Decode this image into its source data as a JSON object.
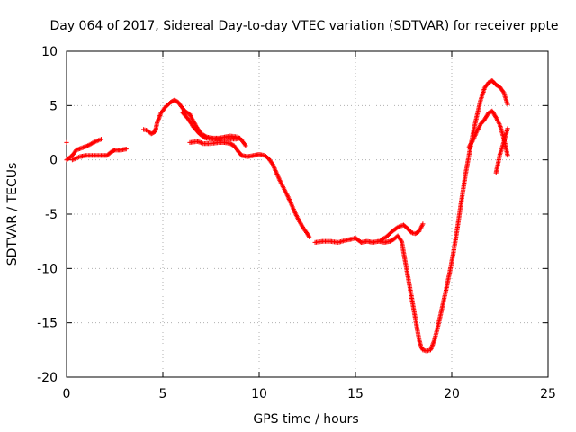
{
  "chart_data": {
    "type": "scatter",
    "title": "Day 064 of 2017, Sidereal Day-to-day VTEC variation (SDTVAR) for receiver ppte",
    "xlabel": "GPS time / hours",
    "ylabel": "SDTVAR / TECUs",
    "xlim": [
      0,
      25
    ],
    "ylim": [
      -20,
      10
    ],
    "x_ticks": [
      0,
      5,
      10,
      15,
      20,
      25
    ],
    "y_ticks": [
      -20,
      -15,
      -10,
      -5,
      0,
      5,
      10
    ],
    "x_tick_labels": [
      "0",
      "5",
      "10",
      "15",
      "20",
      "25"
    ],
    "y_tick_labels": [
      "-20",
      "-15",
      "-10",
      "-5",
      "0",
      "5",
      "10"
    ],
    "grid": true,
    "marker": "+",
    "color": "#ff0000",
    "segments": [
      [
        [
          0.0,
          1.6
        ]
      ],
      [
        [
          0.0,
          0.0
        ],
        [
          0.3,
          0.4
        ],
        [
          0.5,
          0.9
        ],
        [
          0.8,
          1.1
        ],
        [
          1.1,
          1.3
        ],
        [
          1.4,
          1.6
        ],
        [
          1.8,
          1.9
        ]
      ],
      [
        [
          0.3,
          0.0
        ],
        [
          0.7,
          0.3
        ],
        [
          1.0,
          0.4
        ],
        [
          1.4,
          0.4
        ],
        [
          1.8,
          0.4
        ],
        [
          2.1,
          0.4
        ],
        [
          2.3,
          0.7
        ],
        [
          2.5,
          0.9
        ],
        [
          2.8,
          0.9
        ],
        [
          3.1,
          1.0
        ]
      ],
      [
        [
          4.0,
          2.8
        ],
        [
          4.2,
          2.7
        ],
        [
          4.4,
          2.4
        ],
        [
          4.6,
          2.6
        ],
        [
          4.7,
          3.4
        ],
        [
          4.9,
          4.3
        ],
        [
          5.1,
          4.8
        ],
        [
          5.4,
          5.3
        ],
        [
          5.6,
          5.5
        ],
        [
          5.8,
          5.3
        ],
        [
          6.0,
          4.8
        ],
        [
          6.2,
          4.4
        ],
        [
          6.4,
          4.2
        ],
        [
          6.6,
          3.5
        ],
        [
          6.8,
          2.9
        ],
        [
          7.0,
          2.4
        ],
        [
          7.3,
          2.1
        ],
        [
          7.6,
          2.0
        ],
        [
          7.9,
          2.0
        ],
        [
          8.2,
          2.1
        ],
        [
          8.5,
          2.2
        ],
        [
          8.9,
          2.1
        ],
        [
          9.1,
          1.8
        ],
        [
          9.3,
          1.3
        ]
      ],
      [
        [
          6.0,
          4.4
        ],
        [
          6.3,
          3.8
        ],
        [
          6.6,
          3.0
        ],
        [
          6.9,
          2.4
        ],
        [
          7.2,
          2.0
        ],
        [
          7.6,
          1.9
        ],
        [
          8.0,
          1.9
        ],
        [
          8.4,
          1.9
        ],
        [
          8.8,
          1.9
        ],
        [
          9.0,
          2.0
        ]
      ],
      [
        [
          6.4,
          1.6
        ],
        [
          6.8,
          1.7
        ],
        [
          7.1,
          1.5
        ],
        [
          7.5,
          1.5
        ],
        [
          7.9,
          1.6
        ],
        [
          8.2,
          1.6
        ],
        [
          8.5,
          1.5
        ],
        [
          8.7,
          1.3
        ],
        [
          8.9,
          0.8
        ],
        [
          9.1,
          0.4
        ],
        [
          9.4,
          0.3
        ],
        [
          9.7,
          0.4
        ],
        [
          10.0,
          0.5
        ],
        [
          10.3,
          0.4
        ],
        [
          10.5,
          0.1
        ],
        [
          10.7,
          -0.4
        ],
        [
          10.9,
          -1.2
        ],
        [
          11.1,
          -2.0
        ],
        [
          11.3,
          -2.7
        ],
        [
          11.5,
          -3.4
        ],
        [
          11.7,
          -4.2
        ],
        [
          11.9,
          -5.0
        ],
        [
          12.1,
          -5.7
        ],
        [
          12.3,
          -6.3
        ],
        [
          12.5,
          -6.8
        ],
        [
          12.6,
          -7.1
        ]
      ],
      [
        [
          12.9,
          -7.6
        ],
        [
          13.3,
          -7.5
        ],
        [
          13.7,
          -7.5
        ],
        [
          14.1,
          -7.6
        ],
        [
          14.5,
          -7.4
        ],
        [
          14.8,
          -7.3
        ],
        [
          15.0,
          -7.2
        ],
        [
          15.3,
          -7.6
        ],
        [
          15.6,
          -7.5
        ],
        [
          15.9,
          -7.6
        ],
        [
          16.2,
          -7.5
        ],
        [
          16.5,
          -7.6
        ],
        [
          16.8,
          -7.5
        ],
        [
          17.0,
          -7.3
        ],
        [
          17.2,
          -7.0
        ],
        [
          17.4,
          -7.5
        ],
        [
          17.5,
          -8.5
        ],
        [
          17.6,
          -9.5
        ],
        [
          17.7,
          -10.5
        ],
        [
          17.8,
          -11.5
        ],
        [
          17.9,
          -12.5
        ],
        [
          18.0,
          -13.5
        ],
        [
          18.1,
          -14.5
        ],
        [
          18.2,
          -15.5
        ],
        [
          18.3,
          -16.5
        ],
        [
          18.4,
          -17.2
        ],
        [
          18.5,
          -17.5
        ],
        [
          18.7,
          -17.6
        ],
        [
          18.9,
          -17.5
        ],
        [
          19.1,
          -16.6
        ],
        [
          19.3,
          -15.2
        ],
        [
          19.5,
          -13.6
        ],
        [
          19.7,
          -12.0
        ],
        [
          19.9,
          -10.3
        ],
        [
          20.1,
          -8.4
        ],
        [
          20.3,
          -6.2
        ],
        [
          20.5,
          -3.8
        ],
        [
          20.7,
          -1.5
        ],
        [
          20.9,
          0.5
        ],
        [
          21.1,
          2.4
        ],
        [
          21.3,
          4.0
        ],
        [
          21.5,
          5.5
        ],
        [
          21.7,
          6.6
        ],
        [
          21.9,
          7.1
        ],
        [
          22.1,
          7.3
        ],
        [
          22.3,
          6.9
        ],
        [
          22.5,
          6.7
        ],
        [
          22.7,
          6.2
        ],
        [
          22.9,
          5.1
        ]
      ],
      [
        [
          16.3,
          -7.4
        ],
        [
          16.6,
          -7.1
        ],
        [
          16.9,
          -6.6
        ],
        [
          17.2,
          -6.2
        ],
        [
          17.5,
          -6.0
        ],
        [
          17.7,
          -6.3
        ],
        [
          17.9,
          -6.7
        ],
        [
          18.1,
          -6.8
        ],
        [
          18.3,
          -6.6
        ],
        [
          18.5,
          -5.9
        ]
      ],
      [
        [
          20.9,
          1.2
        ],
        [
          21.1,
          1.8
        ],
        [
          21.3,
          2.6
        ],
        [
          21.5,
          3.3
        ],
        [
          21.7,
          3.7
        ],
        [
          21.9,
          4.3
        ],
        [
          22.1,
          4.5
        ],
        [
          22.3,
          3.9
        ],
        [
          22.5,
          3.2
        ],
        [
          22.7,
          2.0
        ],
        [
          22.9,
          0.4
        ]
      ],
      [
        [
          22.3,
          -1.2
        ],
        [
          22.5,
          0.5
        ],
        [
          22.7,
          1.6
        ],
        [
          22.9,
          2.9
        ]
      ]
    ]
  }
}
